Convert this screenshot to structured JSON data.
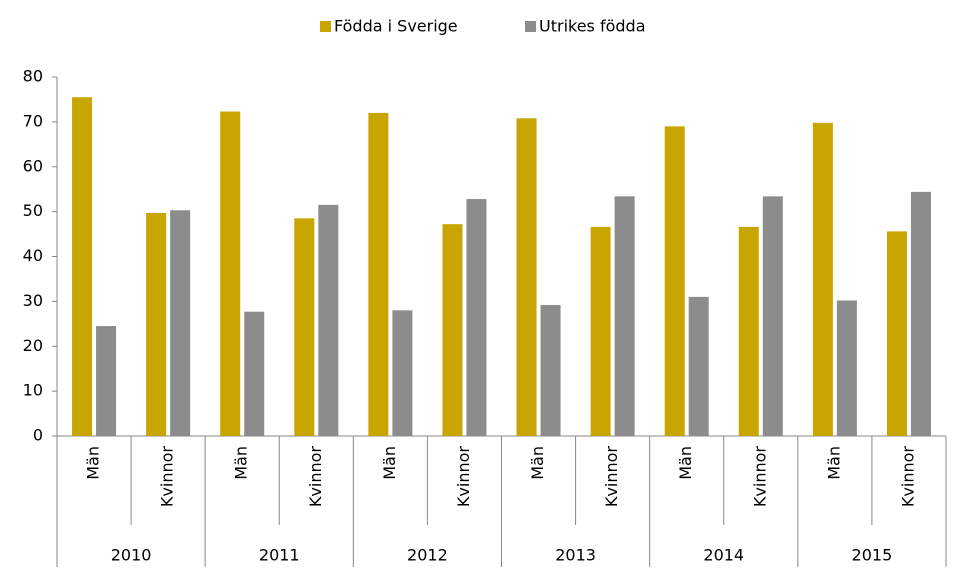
{
  "chart_data": {
    "type": "bar",
    "categories": [
      "Män",
      "Kvinnor",
      "Män",
      "Kvinnor",
      "Män",
      "Kvinnor",
      "Män",
      "Kvinnor",
      "Män",
      "Kvinnor",
      "Män",
      "Kvinnor"
    ],
    "groups": [
      "2010",
      "2011",
      "2012",
      "2013",
      "2014",
      "2015"
    ],
    "series": [
      {
        "name": "Födda i Sverige",
        "color": "#c9a500",
        "values": [
          75.5,
          49.7,
          72.3,
          48.5,
          72,
          47.2,
          70.8,
          46.6,
          69,
          46.6,
          69.8,
          45.6
        ]
      },
      {
        "name": "Utrikes födda",
        "color": "#8c8c8c",
        "values": [
          24.5,
          50.3,
          27.7,
          51.5,
          28,
          52.8,
          29.2,
          53.4,
          31,
          53.4,
          30.2,
          54.4
        ]
      }
    ],
    "ylim": [
      0,
      80
    ],
    "yticks": [
      0,
      10,
      20,
      30,
      40,
      50,
      60,
      70,
      80
    ],
    "grid": false,
    "legend": "top"
  }
}
